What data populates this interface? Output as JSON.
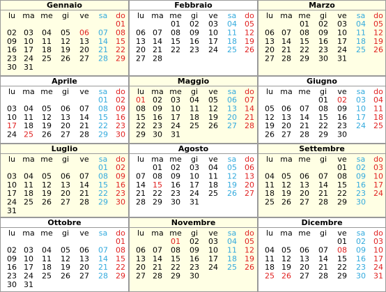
{
  "weekdays": [
    "lu",
    "ma",
    "me",
    "gi",
    "ve",
    "sa",
    "do"
  ],
  "months": [
    {
      "name": "Gennaio",
      "weeks": [
        [
          null,
          null,
          null,
          null,
          null,
          null,
          "01"
        ],
        [
          "02",
          "03",
          "04",
          "05",
          "06",
          "07",
          "08"
        ],
        [
          "09",
          "10",
          "11",
          "12",
          "13",
          "14",
          "15"
        ],
        [
          "16",
          "17",
          "18",
          "19",
          "20",
          "21",
          "22"
        ],
        [
          "23",
          "24",
          "25",
          "26",
          "27",
          "28",
          "29"
        ],
        [
          "30",
          "31",
          null,
          null,
          null,
          null,
          null
        ]
      ],
      "holidays": [
        "06"
      ]
    },
    {
      "name": "Febbraio",
      "weeks": [
        [
          null,
          null,
          "01",
          "02",
          "03",
          "04",
          "05"
        ],
        [
          "06",
          "07",
          "08",
          "09",
          "10",
          "11",
          "12"
        ],
        [
          "13",
          "14",
          "15",
          "16",
          "17",
          "18",
          "19"
        ],
        [
          "20",
          "21",
          "22",
          "23",
          "24",
          "25",
          "26"
        ],
        [
          "27",
          "28",
          null,
          null,
          null,
          null,
          null
        ]
      ],
      "holidays": []
    },
    {
      "name": "Marzo",
      "weeks": [
        [
          null,
          null,
          "01",
          "02",
          "03",
          "04",
          "05"
        ],
        [
          "06",
          "07",
          "08",
          "09",
          "10",
          "11",
          "12"
        ],
        [
          "13",
          "14",
          "15",
          "16",
          "17",
          "18",
          "19"
        ],
        [
          "20",
          "21",
          "22",
          "23",
          "24",
          "25",
          "26"
        ],
        [
          "27",
          "28",
          "29",
          "30",
          "31",
          null,
          null
        ]
      ],
      "holidays": []
    },
    {
      "name": "Aprile",
      "weeks": [
        [
          null,
          null,
          null,
          null,
          null,
          "01",
          "02"
        ],
        [
          "03",
          "04",
          "05",
          "06",
          "07",
          "08",
          "09"
        ],
        [
          "10",
          "11",
          "12",
          "13",
          "14",
          "15",
          "16"
        ],
        [
          "17",
          "18",
          "19",
          "20",
          "21",
          "22",
          "23"
        ],
        [
          "24",
          "25",
          "26",
          "27",
          "28",
          "29",
          "30"
        ]
      ],
      "holidays": [
        "17",
        "25"
      ]
    },
    {
      "name": "Maggio",
      "weeks": [
        [
          "01",
          "02",
          "03",
          "04",
          "05",
          "06",
          "07"
        ],
        [
          "08",
          "09",
          "10",
          "11",
          "12",
          "13",
          "14"
        ],
        [
          "15",
          "16",
          "17",
          "18",
          "19",
          "20",
          "21"
        ],
        [
          "22",
          "23",
          "24",
          "25",
          "26",
          "27",
          "28"
        ],
        [
          "29",
          "30",
          "31",
          null,
          null,
          null,
          null
        ]
      ],
      "holidays": [
        "01"
      ]
    },
    {
      "name": "Giugno",
      "weeks": [
        [
          null,
          null,
          null,
          "01",
          "02",
          "03",
          "04"
        ],
        [
          "05",
          "06",
          "07",
          "08",
          "09",
          "10",
          "11"
        ],
        [
          "12",
          "13",
          "14",
          "15",
          "16",
          "17",
          "18"
        ],
        [
          "19",
          "20",
          "21",
          "22",
          "23",
          "24",
          "25"
        ],
        [
          "26",
          "27",
          "28",
          "29",
          "30",
          null,
          null
        ]
      ],
      "holidays": [
        "02"
      ]
    },
    {
      "name": "Luglio",
      "weeks": [
        [
          null,
          null,
          null,
          null,
          null,
          "01",
          "02"
        ],
        [
          "03",
          "04",
          "05",
          "06",
          "07",
          "08",
          "09"
        ],
        [
          "10",
          "11",
          "12",
          "13",
          "14",
          "15",
          "16"
        ],
        [
          "17",
          "18",
          "19",
          "20",
          "21",
          "22",
          "23"
        ],
        [
          "24",
          "25",
          "26",
          "27",
          "28",
          "29",
          "30"
        ],
        [
          "31",
          null,
          null,
          null,
          null,
          null,
          null
        ]
      ],
      "holidays": []
    },
    {
      "name": "Agosto",
      "weeks": [
        [
          null,
          "01",
          "02",
          "03",
          "04",
          "05",
          "06"
        ],
        [
          "07",
          "08",
          "09",
          "10",
          "11",
          "12",
          "13"
        ],
        [
          "14",
          "15",
          "16",
          "17",
          "18",
          "19",
          "20"
        ],
        [
          "21",
          "22",
          "23",
          "24",
          "25",
          "26",
          "27"
        ],
        [
          "28",
          "29",
          "30",
          "31",
          null,
          null,
          null
        ]
      ],
      "holidays": [
        "15"
      ]
    },
    {
      "name": "Settembre",
      "weeks": [
        [
          null,
          null,
          null,
          null,
          "01",
          "02",
          "03"
        ],
        [
          "04",
          "05",
          "06",
          "07",
          "08",
          "09",
          "10"
        ],
        [
          "11",
          "12",
          "13",
          "14",
          "15",
          "16",
          "17"
        ],
        [
          "18",
          "19",
          "20",
          "21",
          "22",
          "23",
          "24"
        ],
        [
          "25",
          "26",
          "27",
          "28",
          "29",
          "30",
          null
        ]
      ],
      "holidays": []
    },
    {
      "name": "Ottobre",
      "weeks": [
        [
          null,
          null,
          null,
          null,
          null,
          null,
          "01"
        ],
        [
          "02",
          "03",
          "04",
          "05",
          "06",
          "07",
          "08"
        ],
        [
          "09",
          "10",
          "11",
          "12",
          "13",
          "14",
          "15"
        ],
        [
          "16",
          "17",
          "18",
          "19",
          "20",
          "21",
          "22"
        ],
        [
          "23",
          "24",
          "25",
          "26",
          "27",
          "28",
          "29"
        ],
        [
          "30",
          "31",
          null,
          null,
          null,
          null,
          null
        ]
      ],
      "holidays": []
    },
    {
      "name": "Novembre",
      "weeks": [
        [
          null,
          null,
          "01",
          "02",
          "03",
          "04",
          "05"
        ],
        [
          "06",
          "07",
          "08",
          "09",
          "10",
          "11",
          "12"
        ],
        [
          "13",
          "14",
          "15",
          "16",
          "17",
          "18",
          "19"
        ],
        [
          "20",
          "21",
          "22",
          "23",
          "24",
          "25",
          "26"
        ],
        [
          "27",
          "28",
          "29",
          "30",
          null,
          null,
          null
        ]
      ],
      "holidays": [
        "01"
      ]
    },
    {
      "name": "Dicembre",
      "weeks": [
        [
          null,
          null,
          null,
          null,
          "01",
          "02",
          "03"
        ],
        [
          "04",
          "05",
          "06",
          "07",
          "08",
          "09",
          "10"
        ],
        [
          "11",
          "12",
          "13",
          "14",
          "15",
          "16",
          "17"
        ],
        [
          "18",
          "19",
          "20",
          "21",
          "22",
          "23",
          "24"
        ],
        [
          "25",
          "26",
          "27",
          "28",
          "29",
          "30",
          "31"
        ]
      ],
      "holidays": [
        "08",
        "25",
        "26"
      ]
    }
  ]
}
